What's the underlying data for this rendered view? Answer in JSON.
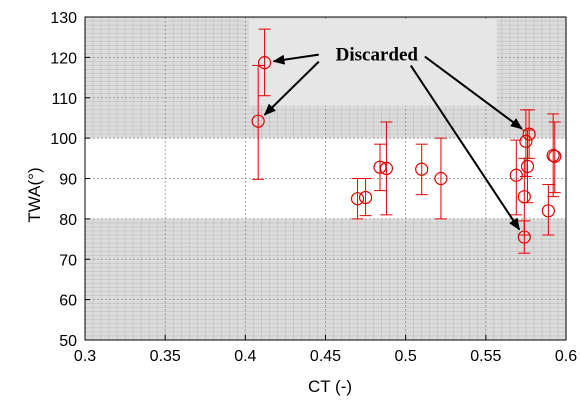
{
  "chart_data": {
    "type": "scatter",
    "xlabel": "CT (-)",
    "ylabel": "TWA(°)",
    "xlim": [
      0.3,
      0.6
    ],
    "ylim": [
      50,
      130
    ],
    "xticks": [
      "0.3",
      "0.35",
      "0.4",
      "0.45",
      "0.5",
      "0.55",
      "0.6"
    ],
    "yticks": [
      "50",
      "60",
      "70",
      "80",
      "90",
      "100",
      "110",
      "120",
      "130"
    ],
    "grid": true,
    "minor_grid": true,
    "unshaded_band": [
      80,
      100
    ],
    "marker": "open-circle",
    "series_color": "#e00000",
    "annotation": {
      "text": "Discarded",
      "targets": [
        {
          "x": 0.412,
          "y": 118.7
        },
        {
          "x": 0.408,
          "y": 104.2
        },
        {
          "x": 0.577,
          "y": 101.0
        },
        {
          "x": 0.574,
          "y": 75.5
        }
      ]
    },
    "points": [
      {
        "x": 0.412,
        "y": 118.7,
        "err_low": 110.5,
        "err_high": 127.0
      },
      {
        "x": 0.408,
        "y": 104.2,
        "err_low": 89.8,
        "err_high": 118.0
      },
      {
        "x": 0.47,
        "y": 85.0,
        "err_low": 80.0,
        "err_high": 90.0
      },
      {
        "x": 0.475,
        "y": 85.3,
        "err_low": 80.8,
        "err_high": 90.0
      },
      {
        "x": 0.484,
        "y": 92.8,
        "err_low": 87.0,
        "err_high": 98.5
      },
      {
        "x": 0.488,
        "y": 92.5,
        "err_low": 81.0,
        "err_high": 104.0
      },
      {
        "x": 0.51,
        "y": 92.3,
        "err_low": 86.0,
        "err_high": 98.5
      },
      {
        "x": 0.522,
        "y": 90.0,
        "err_low": 80.0,
        "err_high": 100.0
      },
      {
        "x": 0.569,
        "y": 90.8,
        "err_low": 81.0,
        "err_high": 99.5
      },
      {
        "x": 0.574,
        "y": 85.5,
        "err_low": 76.0,
        "err_high": 95.0
      },
      {
        "x": 0.574,
        "y": 75.5,
        "err_low": 71.5,
        "err_high": 79.5
      },
      {
        "x": 0.575,
        "y": 99.2,
        "err_low": 90.5,
        "err_high": 107.0
      },
      {
        "x": 0.576,
        "y": 93.0,
        "err_low": 84.0,
        "err_high": 102.0
      },
      {
        "x": 0.577,
        "y": 101.0,
        "err_low": 95.0,
        "err_high": 107.0
      },
      {
        "x": 0.589,
        "y": 82.0,
        "err_low": 76.0,
        "err_high": 88.5
      },
      {
        "x": 0.592,
        "y": 95.7,
        "err_low": 85.5,
        "err_high": 106.0
      },
      {
        "x": 0.593,
        "y": 95.5,
        "err_low": 86.5,
        "err_high": 104.0
      }
    ]
  }
}
